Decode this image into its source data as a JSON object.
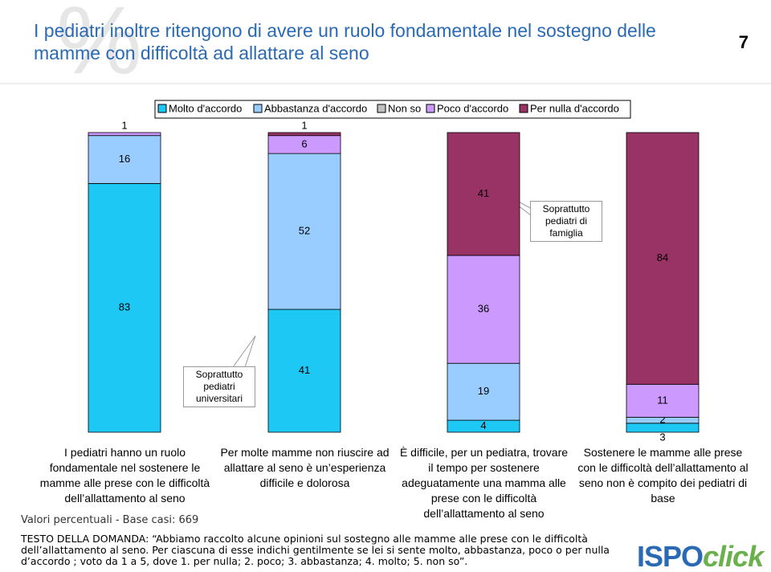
{
  "chart_data": {
    "type": "stacked-bar",
    "title": "I pediatri inoltre ritengono di avere un ruolo fondamentale nel sostegno delle mamme con difficoltà ad allattare al seno",
    "page_number": "7",
    "categories": [
      "I pediatri hanno un ruolo fondamentale nel sostenere le mamme alle prese con le difficoltà dell’allattamento al seno",
      "Per molte mamme non riuscire ad allattare al seno è un’esperienza difficile e dolorosa",
      "È difficile, per un pediatra, trovare il tempo per sostenere adeguatamente una mamma alle prese con le difficoltà dell’allattamento al seno",
      "Sostenere le mamme alle prese con le difficoltà dell’allattamento al seno non è compito dei pediatri di base"
    ],
    "series": [
      {
        "name": "Molto d'accordo",
        "color": "#1ec8f5",
        "values": [
          83,
          41,
          4,
          3
        ]
      },
      {
        "name": "Abbastanza d'accordo",
        "color": "#99ccff",
        "values": [
          16,
          52,
          19,
          2
        ]
      },
      {
        "name": "Non so",
        "color": "#c0c0c0",
        "values": [
          null,
          null,
          null,
          null
        ]
      },
      {
        "name": "Poco d'accordo",
        "color": "#cc99ff",
        "values": [
          1,
          6,
          36,
          11
        ]
      },
      {
        "name": "Per nulla d'accordo",
        "color": "#993366",
        "values": [
          null,
          1,
          41,
          84
        ]
      }
    ],
    "ylim": [
      0,
      100
    ],
    "annotations": [
      "Soprattutto pediatri universitari",
      "Soprattutto pediatri di famiglia"
    ],
    "base_note": "Valori percentuali - Base casi: 669",
    "question": "TESTO DELLA DOMANDA: “Abbiamo raccolto alcune opinioni sul sostegno alle mamme alle prese con le difficoltà dell’allattamento al seno. Per ciascuna di esse indichi gentilmente se lei si sente molto, abbastanza, poco o per nulla d’accordo ; voto da 1 a 5, dove 1. per nulla; 2. poco; 3. abbastanza; 4. molto; 5. non so”.",
    "logo": [
      "ISPO",
      "click"
    ]
  }
}
